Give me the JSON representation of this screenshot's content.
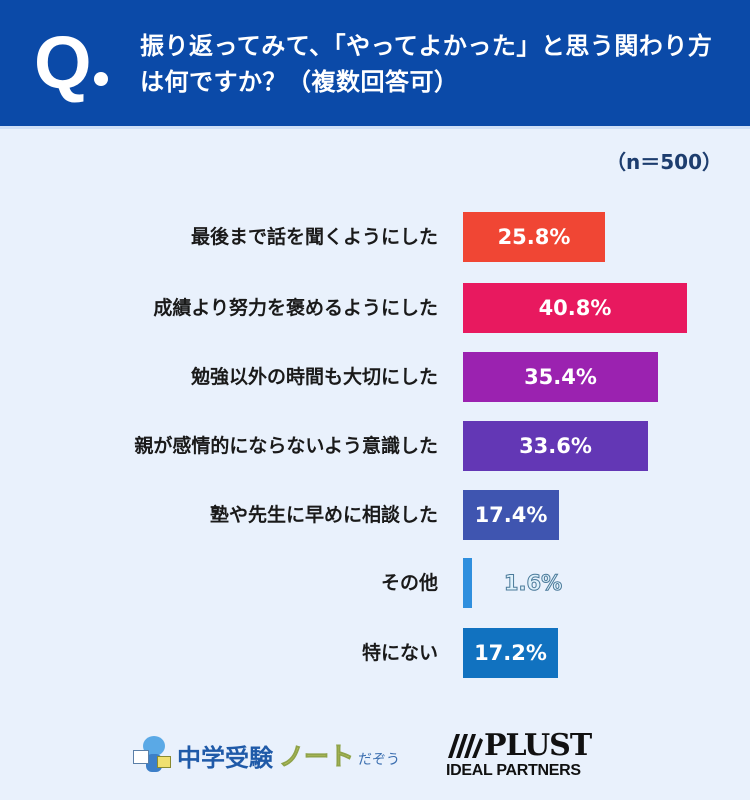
{
  "header": {
    "q_mark": "Q",
    "title": "振り返ってみて、「やってよかった」と思う関わり方は何ですか？（複数回答可）",
    "bg_color": "#0b4aa8"
  },
  "sample_size": "（n＝500）",
  "rows": [
    {
      "label": "最後まで話を聞くようにした",
      "value": "25.8%",
      "color": "#f04634"
    },
    {
      "label": "成績より努力を褒めるようにした",
      "value": "40.8%",
      "color": "#e8195f"
    },
    {
      "label": "勉強以外の時間も大切にした",
      "value": "35.4%",
      "color": "#9b22b0"
    },
    {
      "label": "親が感情的にならないよう意識した",
      "value": "33.6%",
      "color": "#6337b5"
    },
    {
      "label": "塾や先生に早めに相談した",
      "value": "17.4%",
      "color": "#3f55b0"
    },
    {
      "label": "その他",
      "value": "1.6%",
      "color": "#2f8fde"
    },
    {
      "label": "特にない",
      "value": "17.2%",
      "color": "#1172c0"
    }
  ],
  "footer": {
    "logo_left_main": "中学受験",
    "logo_left_note": "ノート",
    "logo_left_suffix": "だぞう",
    "logo_right_main": "PLUST",
    "logo_right_sub": "IDEAL PARTNERS"
  },
  "chart_data": {
    "type": "bar",
    "orientation": "horizontal",
    "title": "振り返ってみて、「やってよかった」と思う関わり方は何ですか？（複数回答可）",
    "subtitle": "（n＝500）",
    "categories": [
      "最後まで話を聞くようにした",
      "成績より努力を褒めるようにした",
      "勉強以外の時間も大切にした",
      "親が感情的にならないよう意識した",
      "塾や先生に早めに相談した",
      "その他",
      "特にない"
    ],
    "values": [
      25.8,
      40.8,
      35.4,
      33.6,
      17.4,
      1.6,
      17.2
    ],
    "unit": "%",
    "colors": [
      "#f04634",
      "#e8195f",
      "#9b22b0",
      "#6337b5",
      "#3f55b0",
      "#2f8fde",
      "#1172c0"
    ],
    "xlabel": "",
    "ylabel": "",
    "grid": false,
    "legend": "none"
  }
}
